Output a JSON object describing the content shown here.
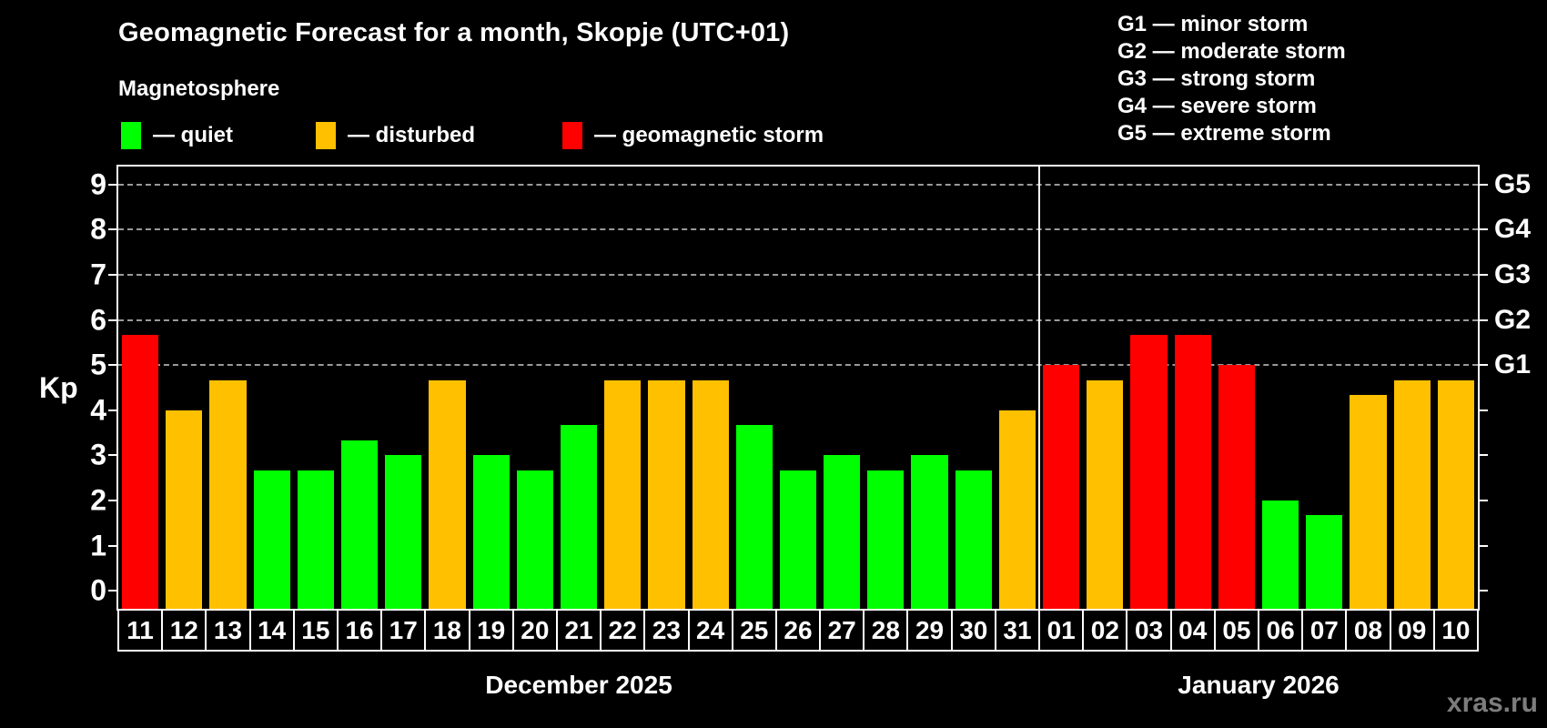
{
  "header": {
    "title": "Geomagnetic Forecast for a month, Skopje (UTC+01)",
    "subtitle": "Magnetosphere"
  },
  "legend": {
    "items": [
      {
        "status": "quiet",
        "label": "— quiet",
        "color": "#00ff00"
      },
      {
        "status": "disturbed",
        "label": "— disturbed",
        "color": "#ffc000"
      },
      {
        "status": "storm",
        "label": "— geomagnetic storm",
        "color": "#ff0000"
      }
    ]
  },
  "storm_scale": {
    "items": [
      {
        "label": "G1 — minor storm"
      },
      {
        "label": "G2 — moderate storm"
      },
      {
        "label": "G3 — strong storm"
      },
      {
        "label": "G4 — severe storm"
      },
      {
        "label": "G5 — extreme storm"
      }
    ]
  },
  "axes": {
    "y_label": "Kp",
    "y_ticks": [
      0,
      1,
      2,
      3,
      4,
      5,
      6,
      7,
      8,
      9
    ],
    "y_min": -0.4,
    "y_max": 9.4,
    "gridlines": [
      5,
      6,
      7,
      8,
      9
    ],
    "right_labels": [
      {
        "value": 5,
        "label": "G1"
      },
      {
        "value": 6,
        "label": "G2"
      },
      {
        "value": 7,
        "label": "G3"
      },
      {
        "value": 8,
        "label": "G4"
      },
      {
        "value": 9,
        "label": "G5"
      }
    ]
  },
  "chart_data": {
    "type": "bar",
    "title": "Geomagnetic Forecast for a month, Skopje (UTC+01)",
    "ylabel": "Kp",
    "ylim": [
      0,
      9
    ],
    "grid": "dashed horizontal at Kp 5-9 only",
    "legend_position": "top-left and top-right",
    "colors": {
      "quiet": "#00ff00",
      "disturbed": "#ffc000",
      "storm": "#ff0000"
    },
    "months": [
      {
        "label": "December 2025",
        "days": [
          "11",
          "12",
          "13",
          "14",
          "15",
          "16",
          "17",
          "18",
          "19",
          "20",
          "21",
          "22",
          "23",
          "24",
          "25",
          "26",
          "27",
          "28",
          "29",
          "30",
          "31"
        ],
        "values": [
          5.67,
          4.0,
          4.67,
          2.67,
          2.67,
          3.33,
          3.0,
          4.67,
          3.0,
          2.67,
          3.67,
          4.67,
          4.67,
          4.67,
          3.67,
          2.67,
          3.0,
          2.67,
          3.0,
          2.67,
          4.0
        ],
        "statuses": [
          "storm",
          "disturbed",
          "disturbed",
          "quiet",
          "quiet",
          "quiet",
          "quiet",
          "disturbed",
          "quiet",
          "quiet",
          "quiet",
          "disturbed",
          "disturbed",
          "disturbed",
          "quiet",
          "quiet",
          "quiet",
          "quiet",
          "quiet",
          "quiet",
          "disturbed"
        ]
      },
      {
        "label": "January 2026",
        "days": [
          "01",
          "02",
          "03",
          "04",
          "05",
          "06",
          "07",
          "08",
          "09",
          "10"
        ],
        "values": [
          5.0,
          4.67,
          5.67,
          5.67,
          5.0,
          2.0,
          1.67,
          4.33,
          4.67,
          4.67
        ],
        "statuses": [
          "storm",
          "disturbed",
          "storm",
          "storm",
          "storm",
          "quiet",
          "quiet",
          "disturbed",
          "disturbed",
          "disturbed"
        ]
      }
    ]
  },
  "watermark": "xras.ru"
}
